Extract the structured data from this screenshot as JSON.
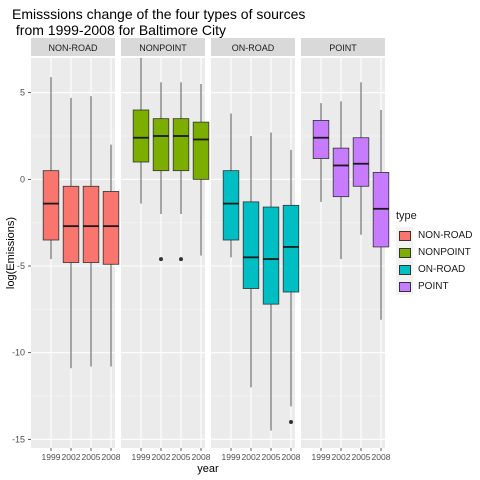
{
  "title_line1": "Emisssions change of the four types of sources",
  "title_line2": " from 1999-2008 for Baltimore City",
  "legend": {
    "title": "type",
    "items": [
      {
        "label": "NON-ROAD",
        "color": "#F8766D"
      },
      {
        "label": "NONPOINT",
        "color": "#7CAE00"
      },
      {
        "label": "ON-ROAD",
        "color": "#00BFC4"
      },
      {
        "label": "POINT",
        "color": "#C77CFF"
      }
    ]
  },
  "chart_data": {
    "type": "boxplot",
    "xlabel": "year",
    "ylabel": "log(Emissions)",
    "x_categories": [
      "1999",
      "2002",
      "2005",
      "2008"
    ],
    "y_ticks": [
      -15,
      -10,
      -5,
      0,
      5
    ],
    "ylim": [
      -15.5,
      7
    ],
    "grid": true,
    "legend_position": "right",
    "facets": [
      {
        "label": "NON-ROAD",
        "color": "#F8766D",
        "boxes": [
          {
            "x": "1999",
            "min": -4.6,
            "q1": -3.5,
            "median": -1.4,
            "q3": 0.5,
            "max": 5.9,
            "outliers": []
          },
          {
            "x": "2002",
            "min": -10.9,
            "q1": -4.8,
            "median": -2.7,
            "q3": -0.4,
            "max": 4.7,
            "outliers": []
          },
          {
            "x": "2005",
            "min": -10.8,
            "q1": -4.8,
            "median": -2.7,
            "q3": -0.4,
            "max": 4.8,
            "outliers": []
          },
          {
            "x": "2008",
            "min": -10.8,
            "q1": -4.9,
            "median": -2.7,
            "q3": -0.7,
            "max": 2.0,
            "outliers": []
          }
        ]
      },
      {
        "label": "NONPOINT",
        "color": "#7CAE00",
        "boxes": [
          {
            "x": "1999",
            "min": -1.4,
            "q1": 1.0,
            "median": 2.4,
            "q3": 4.0,
            "max": 7.0,
            "outliers": []
          },
          {
            "x": "2002",
            "min": -2.0,
            "q1": 0.5,
            "median": 2.5,
            "q3": 3.5,
            "max": 5.6,
            "outliers": [
              -4.6
            ]
          },
          {
            "x": "2005",
            "min": -2.0,
            "q1": 0.5,
            "median": 2.5,
            "q3": 3.5,
            "max": 5.6,
            "outliers": [
              -4.6
            ]
          },
          {
            "x": "2008",
            "min": -4.4,
            "q1": 0.0,
            "median": 2.3,
            "q3": 3.3,
            "max": 5.5,
            "outliers": []
          }
        ]
      },
      {
        "label": "ON-ROAD",
        "color": "#00BFC4",
        "boxes": [
          {
            "x": "1999",
            "min": -4.5,
            "q1": -3.5,
            "median": -1.4,
            "q3": 0.5,
            "max": 3.8,
            "outliers": []
          },
          {
            "x": "2002",
            "min": -12.0,
            "q1": -6.3,
            "median": -4.5,
            "q3": -1.3,
            "max": 2.5,
            "outliers": []
          },
          {
            "x": "2005",
            "min": -14.5,
            "q1": -7.2,
            "median": -4.6,
            "q3": -1.6,
            "max": 2.7,
            "outliers": []
          },
          {
            "x": "2008",
            "min": -13.1,
            "q1": -6.5,
            "median": -3.9,
            "q3": -1.5,
            "max": 1.7,
            "outliers": [
              -14.0
            ]
          }
        ]
      },
      {
        "label": "POINT",
        "color": "#C77CFF",
        "boxes": [
          {
            "x": "1999",
            "min": -1.3,
            "q1": 1.2,
            "median": 2.4,
            "q3": 3.4,
            "max": 4.4,
            "outliers": []
          },
          {
            "x": "2002",
            "min": -4.6,
            "q1": -1.0,
            "median": 0.8,
            "q3": 1.8,
            "max": 4.5,
            "outliers": []
          },
          {
            "x": "2005",
            "min": -3.2,
            "q1": -0.4,
            "median": 0.9,
            "q3": 2.4,
            "max": 5.6,
            "outliers": []
          },
          {
            "x": "2008",
            "min": -8.1,
            "q1": -3.9,
            "median": -1.7,
            "q3": 0.4,
            "max": 4.0,
            "outliers": []
          }
        ]
      }
    ]
  }
}
